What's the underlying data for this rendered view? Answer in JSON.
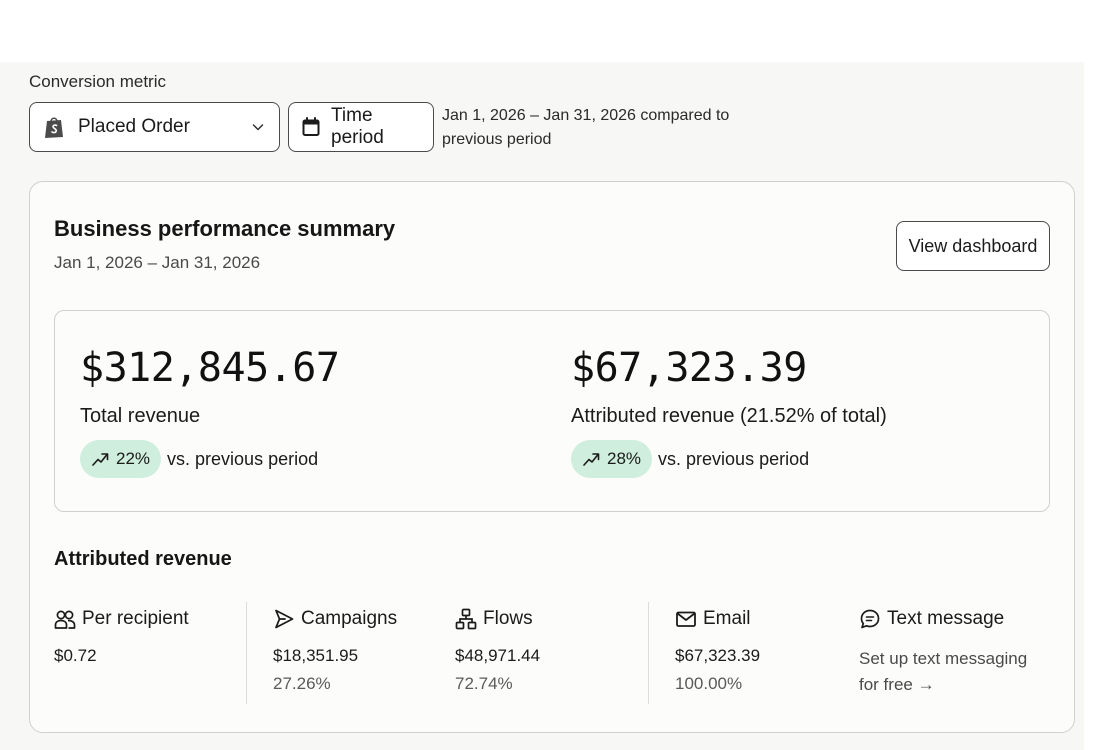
{
  "filters": {
    "conversion_metric_label": "Conversion metric",
    "conversion_metric_value": "Placed Order",
    "time_period_label": "Time period",
    "compare_line1": "Jan 1, 2026 – Jan 31, 2026 compared to",
    "compare_line2": "previous period"
  },
  "summary": {
    "title": "Business performance summary",
    "date_range": "Jan 1, 2026 – Jan 31, 2026",
    "view_dashboard_label": "View dashboard",
    "total": {
      "value": "$312,845.67",
      "label": "Total revenue",
      "change": "22%",
      "change_suffix": "vs. previous period",
      "trend": "up"
    },
    "attributed": {
      "value": "$67,323.39",
      "label": "Attributed revenue (21.52% of total)",
      "change": "28%",
      "change_suffix": "vs. previous period",
      "trend": "up"
    }
  },
  "attributed_revenue": {
    "title": "Attributed revenue",
    "per_recipient": {
      "label": "Per recipient",
      "icon": "people-icon",
      "value": "$0.72"
    },
    "campaigns": {
      "label": "Campaigns",
      "icon": "send-icon",
      "value": "$18,351.95",
      "percent": "27.26%"
    },
    "flows": {
      "label": "Flows",
      "icon": "flow-icon",
      "value": "$48,971.44",
      "percent": "72.74%"
    },
    "email": {
      "label": "Email",
      "icon": "mail-icon",
      "value": "$67,323.39",
      "percent": "100.00%"
    },
    "text_message": {
      "label": "Text message",
      "icon": "chat-icon",
      "link_line1": "Set up text messaging",
      "link_line2": "for free →"
    }
  },
  "colors": {
    "trend_badge_bg": "#cfeedd",
    "border": "#4a4a4a",
    "card_border": "#d0d0cd",
    "shopify_green": "#5e8e3e"
  }
}
